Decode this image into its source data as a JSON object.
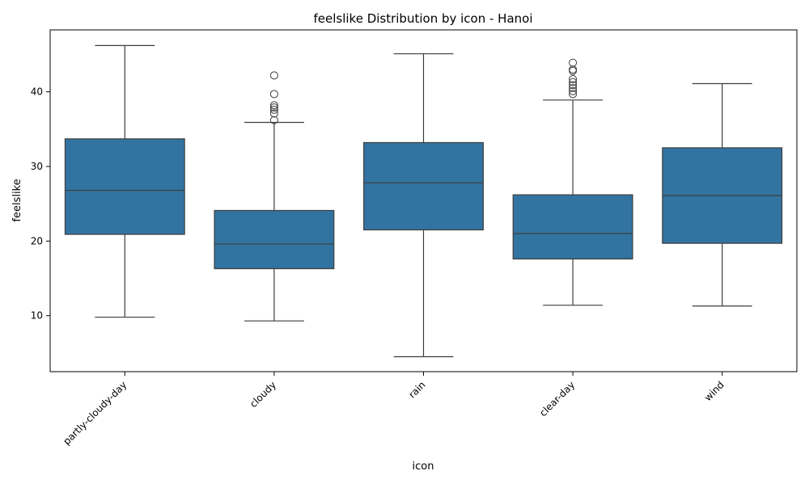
{
  "chart_data": {
    "type": "boxplot",
    "title": "feelslike Distribution by icon - Hanoi",
    "xlabel": "icon",
    "ylabel": "feelslike",
    "ylim": [
      2.5,
      48.3
    ],
    "yticks": [
      10,
      20,
      30,
      40
    ],
    "grid": false,
    "box_color": "#3274a1",
    "line_color": "#3d3d3d",
    "categories": [
      "partly-cloudy-day",
      "cloudy",
      "rain",
      "clear-day",
      "wind"
    ],
    "boxes": [
      {
        "category": "partly-cloudy-day",
        "whisker_low": 9.8,
        "q1": 20.9,
        "median": 26.8,
        "q3": 33.7,
        "whisker_high": 46.2,
        "outliers": []
      },
      {
        "category": "cloudy",
        "whisker_low": 9.3,
        "q1": 16.3,
        "median": 19.6,
        "q3": 24.1,
        "whisker_high": 35.9,
        "outliers": [
          36.2,
          37.1,
          37.6,
          37.9,
          38.2,
          39.7,
          42.2
        ]
      },
      {
        "category": "rain",
        "whisker_low": 4.5,
        "q1": 21.5,
        "median": 27.8,
        "q3": 33.2,
        "whisker_high": 45.1,
        "outliers": []
      },
      {
        "category": "clear-day",
        "whisker_low": 11.4,
        "q1": 17.6,
        "median": 21.0,
        "q3": 26.2,
        "whisker_high": 38.9,
        "outliers": [
          39.7,
          40.1,
          40.5,
          40.9,
          41.3,
          41.7,
          42.8,
          43.0,
          43.9
        ]
      },
      {
        "category": "wind",
        "whisker_low": 11.3,
        "q1": 19.7,
        "median": 26.1,
        "q3": 32.5,
        "whisker_high": 41.1,
        "outliers": []
      }
    ]
  }
}
